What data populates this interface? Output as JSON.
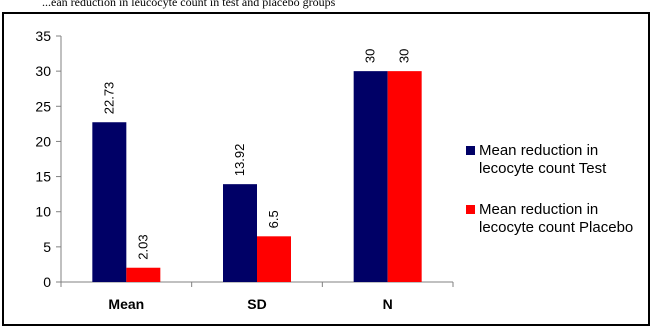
{
  "caption": "...ean reduction in leucocyte count in test and placebo groups",
  "chart_data": {
    "type": "bar",
    "categories": [
      "Mean",
      "SD",
      "N"
    ],
    "series": [
      {
        "name": "Mean reduction in lecocyte count Test",
        "color": "#000066",
        "values": [
          22.73,
          13.92,
          30
        ],
        "labels": [
          "22.73",
          "13.92",
          "30"
        ]
      },
      {
        "name": "Mean reduction in lecocyte count Placebo",
        "color": "#ff0000",
        "values": [
          2.03,
          6.5,
          30
        ],
        "labels": [
          "2.03",
          "6.5",
          "30"
        ]
      }
    ],
    "ylim": [
      0,
      35
    ],
    "yticks": [
      "0",
      "5",
      "10",
      "15",
      "20",
      "25",
      "30",
      "35"
    ],
    "legend_position": "right",
    "grid": false
  }
}
